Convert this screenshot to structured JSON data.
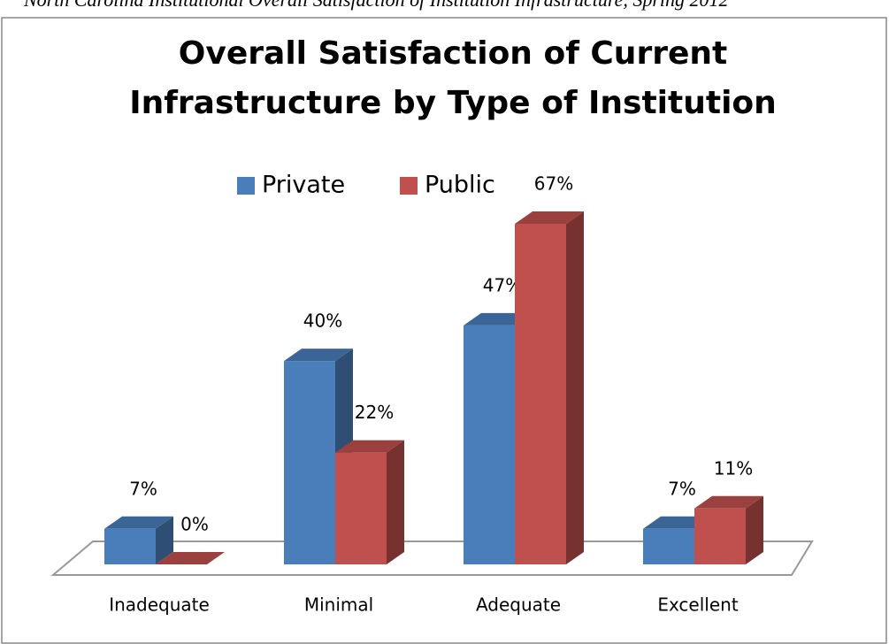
{
  "caption": "North Carolina Institutional Overall Satisfaction of Institution Infrastructure, Spring 2012",
  "chart_data": {
    "type": "bar3d",
    "title": [
      "Overall Satisfaction of Current",
      "Infrastructure by Type of Institution"
    ],
    "categories": [
      "Inadequate",
      "Minimal",
      "Adequate",
      "Excellent"
    ],
    "ylim": [
      0,
      67
    ],
    "series": [
      {
        "name": "Private",
        "color": "#4a7ebb",
        "values": [
          7,
          40,
          47,
          7
        ],
        "value_labels": [
          "7%",
          "40%",
          "47%",
          "7%"
        ]
      },
      {
        "name": "Public",
        "color": "#c0504d",
        "values": [
          0,
          22,
          67,
          11
        ],
        "value_labels": [
          "0%",
          "22%",
          "67%",
          "11%"
        ]
      }
    ]
  }
}
